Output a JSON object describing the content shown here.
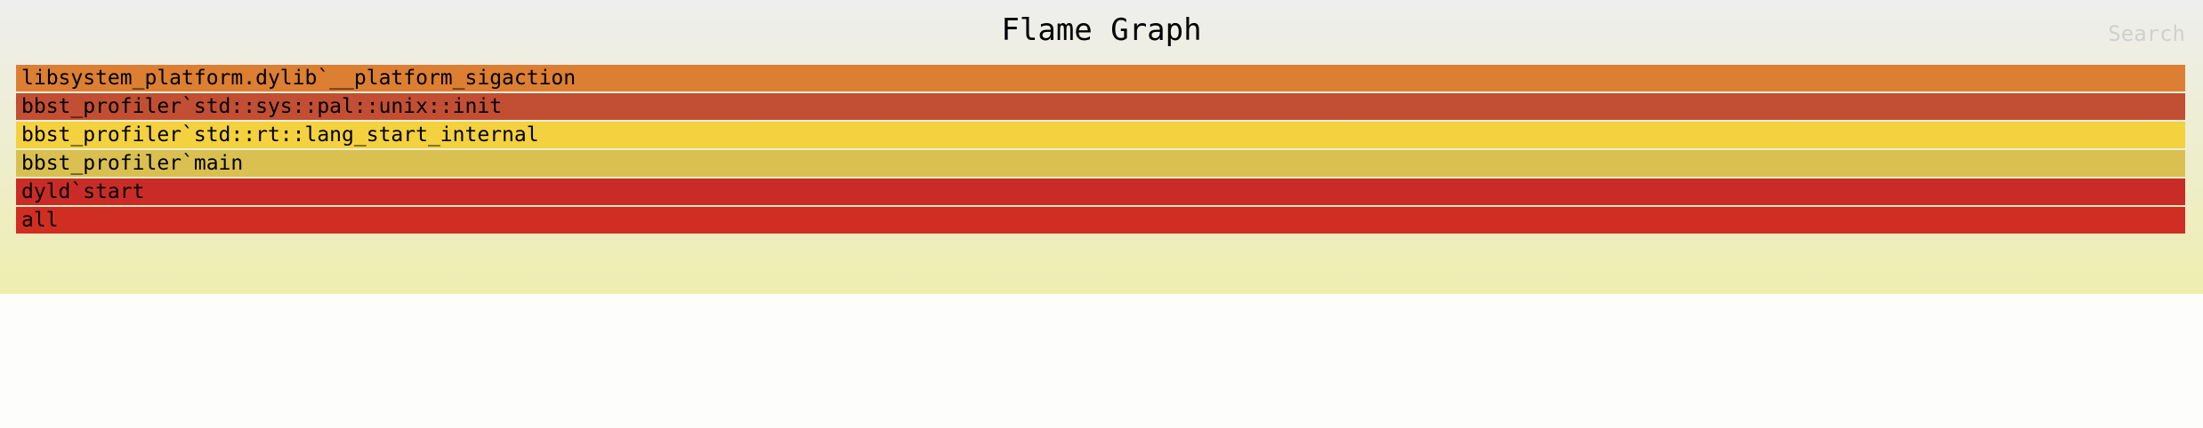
{
  "title": "Flame Graph",
  "search_label": "Search",
  "colors": {
    "background_top": "#eeeeee",
    "background_bottom": "#eeeeb0"
  },
  "chart_data": {
    "type": "flamegraph",
    "title": "Flame Graph",
    "frames": [
      {
        "label": "all",
        "depth": 0,
        "start": 0,
        "width": 1,
        "color": "#d02e22"
      },
      {
        "label": "dyld`start",
        "depth": 1,
        "start": 0,
        "width": 1,
        "color": "#c92c27"
      },
      {
        "label": "bbst_profiler`main",
        "depth": 2,
        "start": 0,
        "width": 1,
        "color": "#d9c050"
      },
      {
        "label": "bbst_profiler`std::rt::lang_start_internal",
        "depth": 3,
        "start": 0,
        "width": 1,
        "color": "#f3d13f"
      },
      {
        "label": "bbst_profiler`std::sys::pal::unix::init",
        "depth": 4,
        "start": 0,
        "width": 1,
        "color": "#c24f33"
      },
      {
        "label": "libsystem_platform.dylib`__platform_sigaction",
        "depth": 5,
        "start": 0,
        "width": 1,
        "color": "#dc7f33"
      }
    ]
  }
}
